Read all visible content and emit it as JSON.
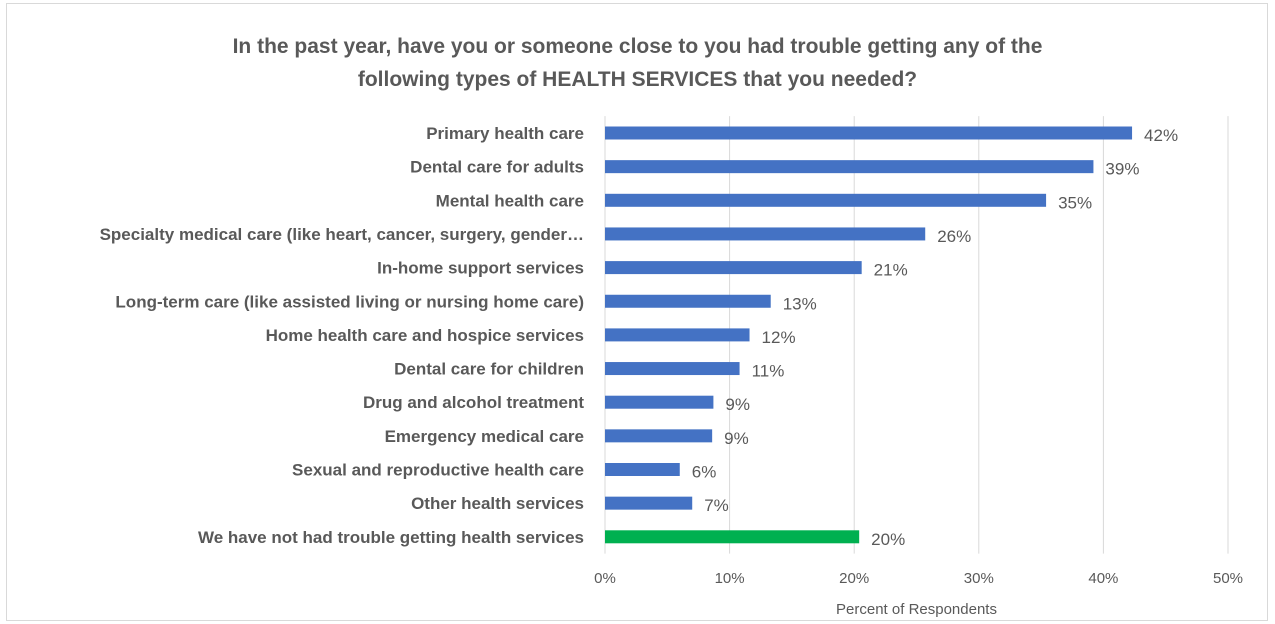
{
  "chart_data": {
    "type": "bar",
    "orientation": "horizontal",
    "title": "In the past year, have you or someone close to you had trouble getting any of the\nfollowing types of HEALTH SERVICES that you needed?",
    "xlabel": "Percent of Respondents",
    "ylabel": "",
    "xlim": [
      0,
      50
    ],
    "x_ticks": [
      "0%",
      "10%",
      "20%",
      "30%",
      "40%",
      "50%"
    ],
    "grid": "vertical",
    "legend": "none",
    "categories": [
      "Primary health care",
      "Dental care for adults",
      "Mental health care",
      "Specialty medical care (like heart, cancer, surgery, gender…",
      "In-home support services",
      "Long-term care (like assisted living or nursing home care)",
      "Home health care and hospice services",
      "Dental care for children",
      "Drug and alcohol treatment",
      "Emergency medical care",
      "Sexual and reproductive health care",
      "Other health services",
      "We have not had trouble getting health services"
    ],
    "values": [
      42.3,
      39.2,
      35.4,
      25.7,
      20.6,
      13.3,
      11.6,
      10.8,
      8.7,
      8.6,
      6.0,
      7.0,
      20.4
    ],
    "data_labels": [
      "42%",
      "39%",
      "35%",
      "26%",
      "21%",
      "13%",
      "12%",
      "11%",
      "9%",
      "9%",
      "6%",
      "7%",
      "20%"
    ],
    "bar_colors": [
      "#4472c4",
      "#4472c4",
      "#4472c4",
      "#4472c4",
      "#4472c4",
      "#4472c4",
      "#4472c4",
      "#4472c4",
      "#4472c4",
      "#4472c4",
      "#4472c4",
      "#4472c4",
      "#00b050"
    ],
    "gridline_color": "#d9d9d9",
    "text_color": "#595959"
  }
}
